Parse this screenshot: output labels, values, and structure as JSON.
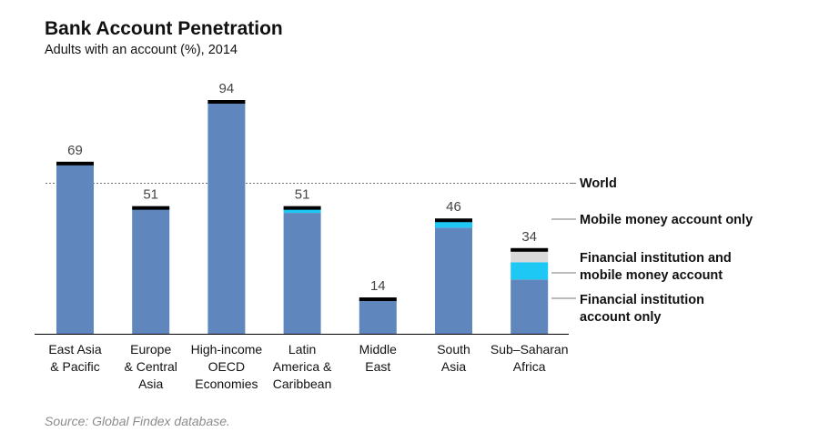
{
  "title": "Bank Account Penetration",
  "subtitle": "Adults with an account (%), 2014",
  "source": "Source: Global Findex database.",
  "colors": {
    "fi_only": "#5f87bd",
    "both": "#1ec8f5",
    "mobile_only": "#d9d9d9",
    "cap": "#000000",
    "world_line": "#777777",
    "axis": "#000000"
  },
  "chart_data": {
    "type": "bar",
    "stacked": true,
    "title": "Bank Account Penetration",
    "subtitle": "Adults with an account (%), 2014",
    "categories": [
      [
        "East Asia",
        "& Pacific"
      ],
      [
        "Europe",
        "& Central",
        "Asia"
      ],
      [
        "High-income",
        "OECD",
        "Economies"
      ],
      [
        "Latin",
        "America &",
        "Caribbean"
      ],
      [
        "Middle",
        "East"
      ],
      [
        "South",
        "Asia"
      ],
      [
        "Sub–Saharan",
        "Africa"
      ]
    ],
    "totals": [
      "69",
      "51",
      "94",
      "51",
      "14",
      "46",
      "34"
    ],
    "series": [
      {
        "name": [
          "Financial institution",
          "account only"
        ],
        "values": [
          69,
          51,
          94,
          49,
          14,
          43,
          22
        ]
      },
      {
        "name": [
          "Financial institution and",
          "mobile money account"
        ],
        "values": [
          0,
          0,
          0,
          2,
          0,
          3,
          7
        ]
      },
      {
        "name": [
          "Mobile money account only"
        ],
        "values": [
          0,
          0,
          0,
          0,
          0,
          0,
          5
        ]
      }
    ],
    "world": {
      "label": "World",
      "value": 61
    },
    "ylim": [
      0,
      100
    ],
    "xlabel": "",
    "ylabel": "",
    "grid": false
  }
}
